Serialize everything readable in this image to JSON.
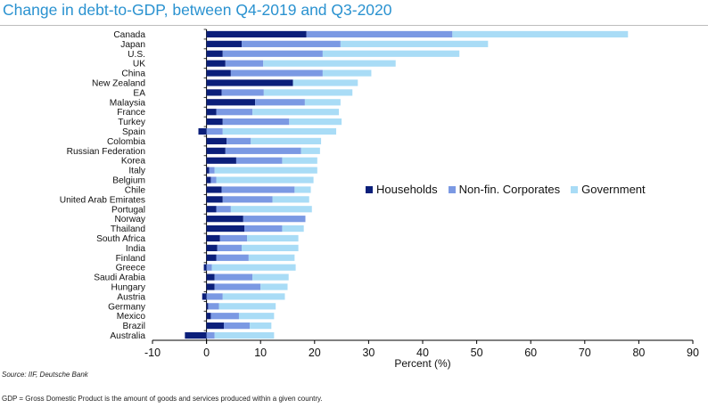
{
  "title": "Change in debt-to-GDP, between Q4-2019 and Q3-2020",
  "source": "Source: IIF, Deutsche Bank",
  "footnote": "GDP = Gross Domestic Product is the amount of goods and services produced within a given country.",
  "colors": {
    "households": "#0b1f7a",
    "corporates": "#7b99e3",
    "government": "#a9dcf6",
    "axis": "#000000",
    "title": "#2a92d0"
  },
  "chart_data": {
    "type": "bar",
    "orientation": "horizontal",
    "stacked": true,
    "title": "Change in debt-to-GDP, between Q4-2019 and Q3-2020",
    "xlabel": "Percent (%)",
    "ylabel": "",
    "xlim": [
      -10,
      90
    ],
    "xticks": [
      -10,
      0,
      10,
      20,
      30,
      40,
      50,
      60,
      70,
      80,
      90
    ],
    "legend_position": "middle-right",
    "categories": [
      "Canada",
      "Japan",
      "U.S.",
      "UK",
      "China",
      "New Zealand",
      "EA",
      "Malaysia",
      "France",
      "Turkey",
      "Spain",
      "Colombia",
      "Russian Federation",
      "Korea",
      "Italy",
      "Belgium",
      "Chile",
      "United Arab Emirates",
      "Portugal",
      "Norway",
      "Thailand",
      "South Africa",
      "India",
      "Finland",
      "Greece",
      "Saudi Arabia",
      "Hungary",
      "Austria",
      "Germany",
      "Mexico",
      "Brazil",
      "Australia"
    ],
    "series": [
      {
        "name": "Households",
        "color_key": "households",
        "values": [
          18.5,
          6.5,
          3,
          3.5,
          4.5,
          16,
          2.8,
          9,
          1.8,
          3,
          -1.5,
          3.7,
          3.5,
          5.5,
          0.5,
          0.8,
          2.8,
          3,
          1.8,
          6.8,
          7,
          2.5,
          2,
          1.8,
          -0.5,
          1.5,
          1.5,
          -0.8,
          0.3,
          0.8,
          3.2,
          -4
        ]
      },
      {
        "name": "Non-fin. Corporates",
        "color_key": "corporates",
        "values": [
          27,
          18.3,
          18.5,
          7,
          17,
          0,
          7.8,
          9.2,
          6.7,
          12.3,
          3,
          4.5,
          14,
          8.5,
          1,
          1,
          13.5,
          9.2,
          2.7,
          11.5,
          7,
          5,
          4.5,
          6,
          1,
          7,
          8.5,
          3,
          2,
          5.2,
          4.8,
          1.5
        ]
      },
      {
        "name": "Government",
        "color_key": "government",
        "values": [
          32.5,
          27.3,
          25.3,
          24.5,
          9,
          12,
          16.4,
          6.6,
          16,
          9.7,
          21,
          13,
          3.5,
          6.5,
          19,
          18,
          3,
          6.8,
          15,
          0,
          4,
          9.5,
          10.5,
          8.5,
          15.5,
          6.7,
          5,
          11.5,
          10.5,
          6.5,
          4,
          11
        ]
      }
    ]
  }
}
